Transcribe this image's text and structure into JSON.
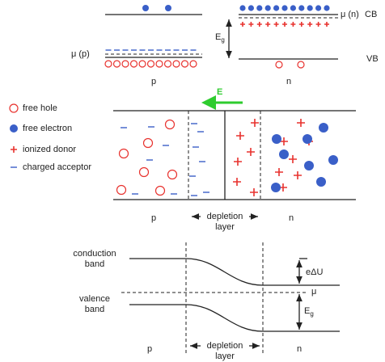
{
  "top": {
    "mu_n": "μ (n)",
    "cb": "CB",
    "eg": "E",
    "eg_sub": "g",
    "mu_p": "μ (p)",
    "vb": "VB",
    "p": "p",
    "n": "n"
  },
  "legend": {
    "items": [
      "free hole",
      "free electron",
      "ionized donor",
      "charged acceptor"
    ]
  },
  "middle": {
    "field": "E",
    "p": "p",
    "depletion": "depletion",
    "layer": "layer",
    "n": "n"
  },
  "bottom": {
    "conduction": "conduction",
    "conduction_band": "band",
    "edu": "eΔU",
    "mu": "μ",
    "valence": "valence",
    "valence_band": "band",
    "eg": "E",
    "eg_sub": "g",
    "p": "p",
    "depletion": "depletion",
    "layer": "layer",
    "n": "n"
  }
}
